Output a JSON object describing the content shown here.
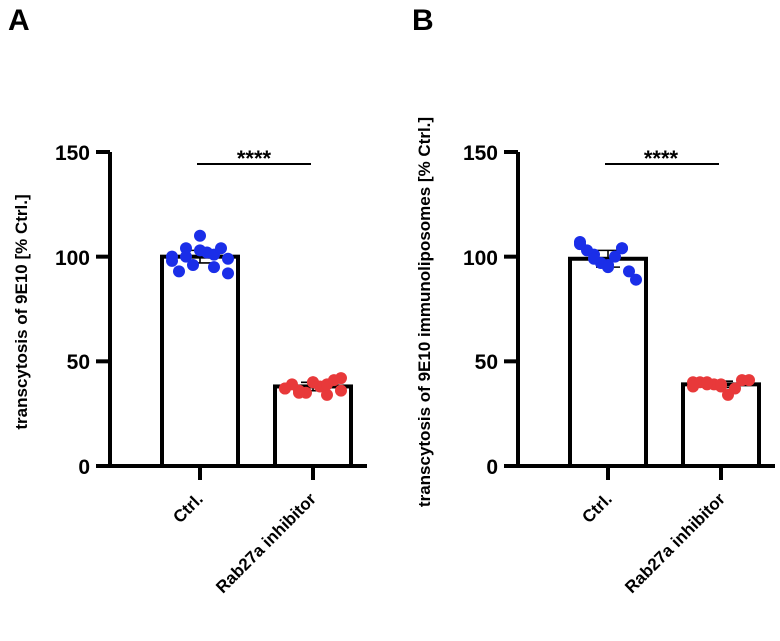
{
  "chart_data": [
    {
      "type": "bar",
      "panel_label": "A",
      "ylabel": "transcytosis of 9E10  [% Ctrl.]",
      "ylim": [
        0,
        150
      ],
      "yticks": [
        "0",
        "50",
        "100",
        "150"
      ],
      "categories": [
        "Ctrl.",
        "Rab27a inhibitor"
      ],
      "values": [
        100,
        38
      ],
      "errors": [
        3,
        2
      ],
      "point_colors": [
        "#1a2ee8",
        "#e8393a"
      ],
      "points": [
        [
          100,
          104,
          110,
          101,
          99,
          93,
          96,
          102,
          104,
          98,
          100,
          103,
          95,
          92
        ],
        [
          37,
          36,
          40,
          34,
          42,
          39,
          35,
          38,
          41,
          37,
          35,
          40,
          39,
          36
        ]
      ],
      "significance": "****"
    },
    {
      "type": "bar",
      "panel_label": "B",
      "ylabel": "transcytosis of 9E10 immunoliposomes [% Ctrl.]",
      "ylim": [
        0,
        150
      ],
      "yticks": [
        "0",
        "50",
        "100",
        "150"
      ],
      "categories": [
        "Ctrl.",
        "Rab27a inhibitor"
      ],
      "values": [
        99,
        39
      ],
      "errors": [
        4,
        1.5
      ],
      "point_colors": [
        "#1a2ee8",
        "#e8393a"
      ],
      "points": [
        [
          107,
          101,
          96,
          104,
          89,
          103,
          97,
          100,
          93,
          106,
          99,
          95,
          104
        ],
        [
          40,
          39,
          38,
          37,
          41,
          40,
          39,
          34,
          41,
          38,
          40,
          39
        ]
      ],
      "significance": "****"
    }
  ]
}
